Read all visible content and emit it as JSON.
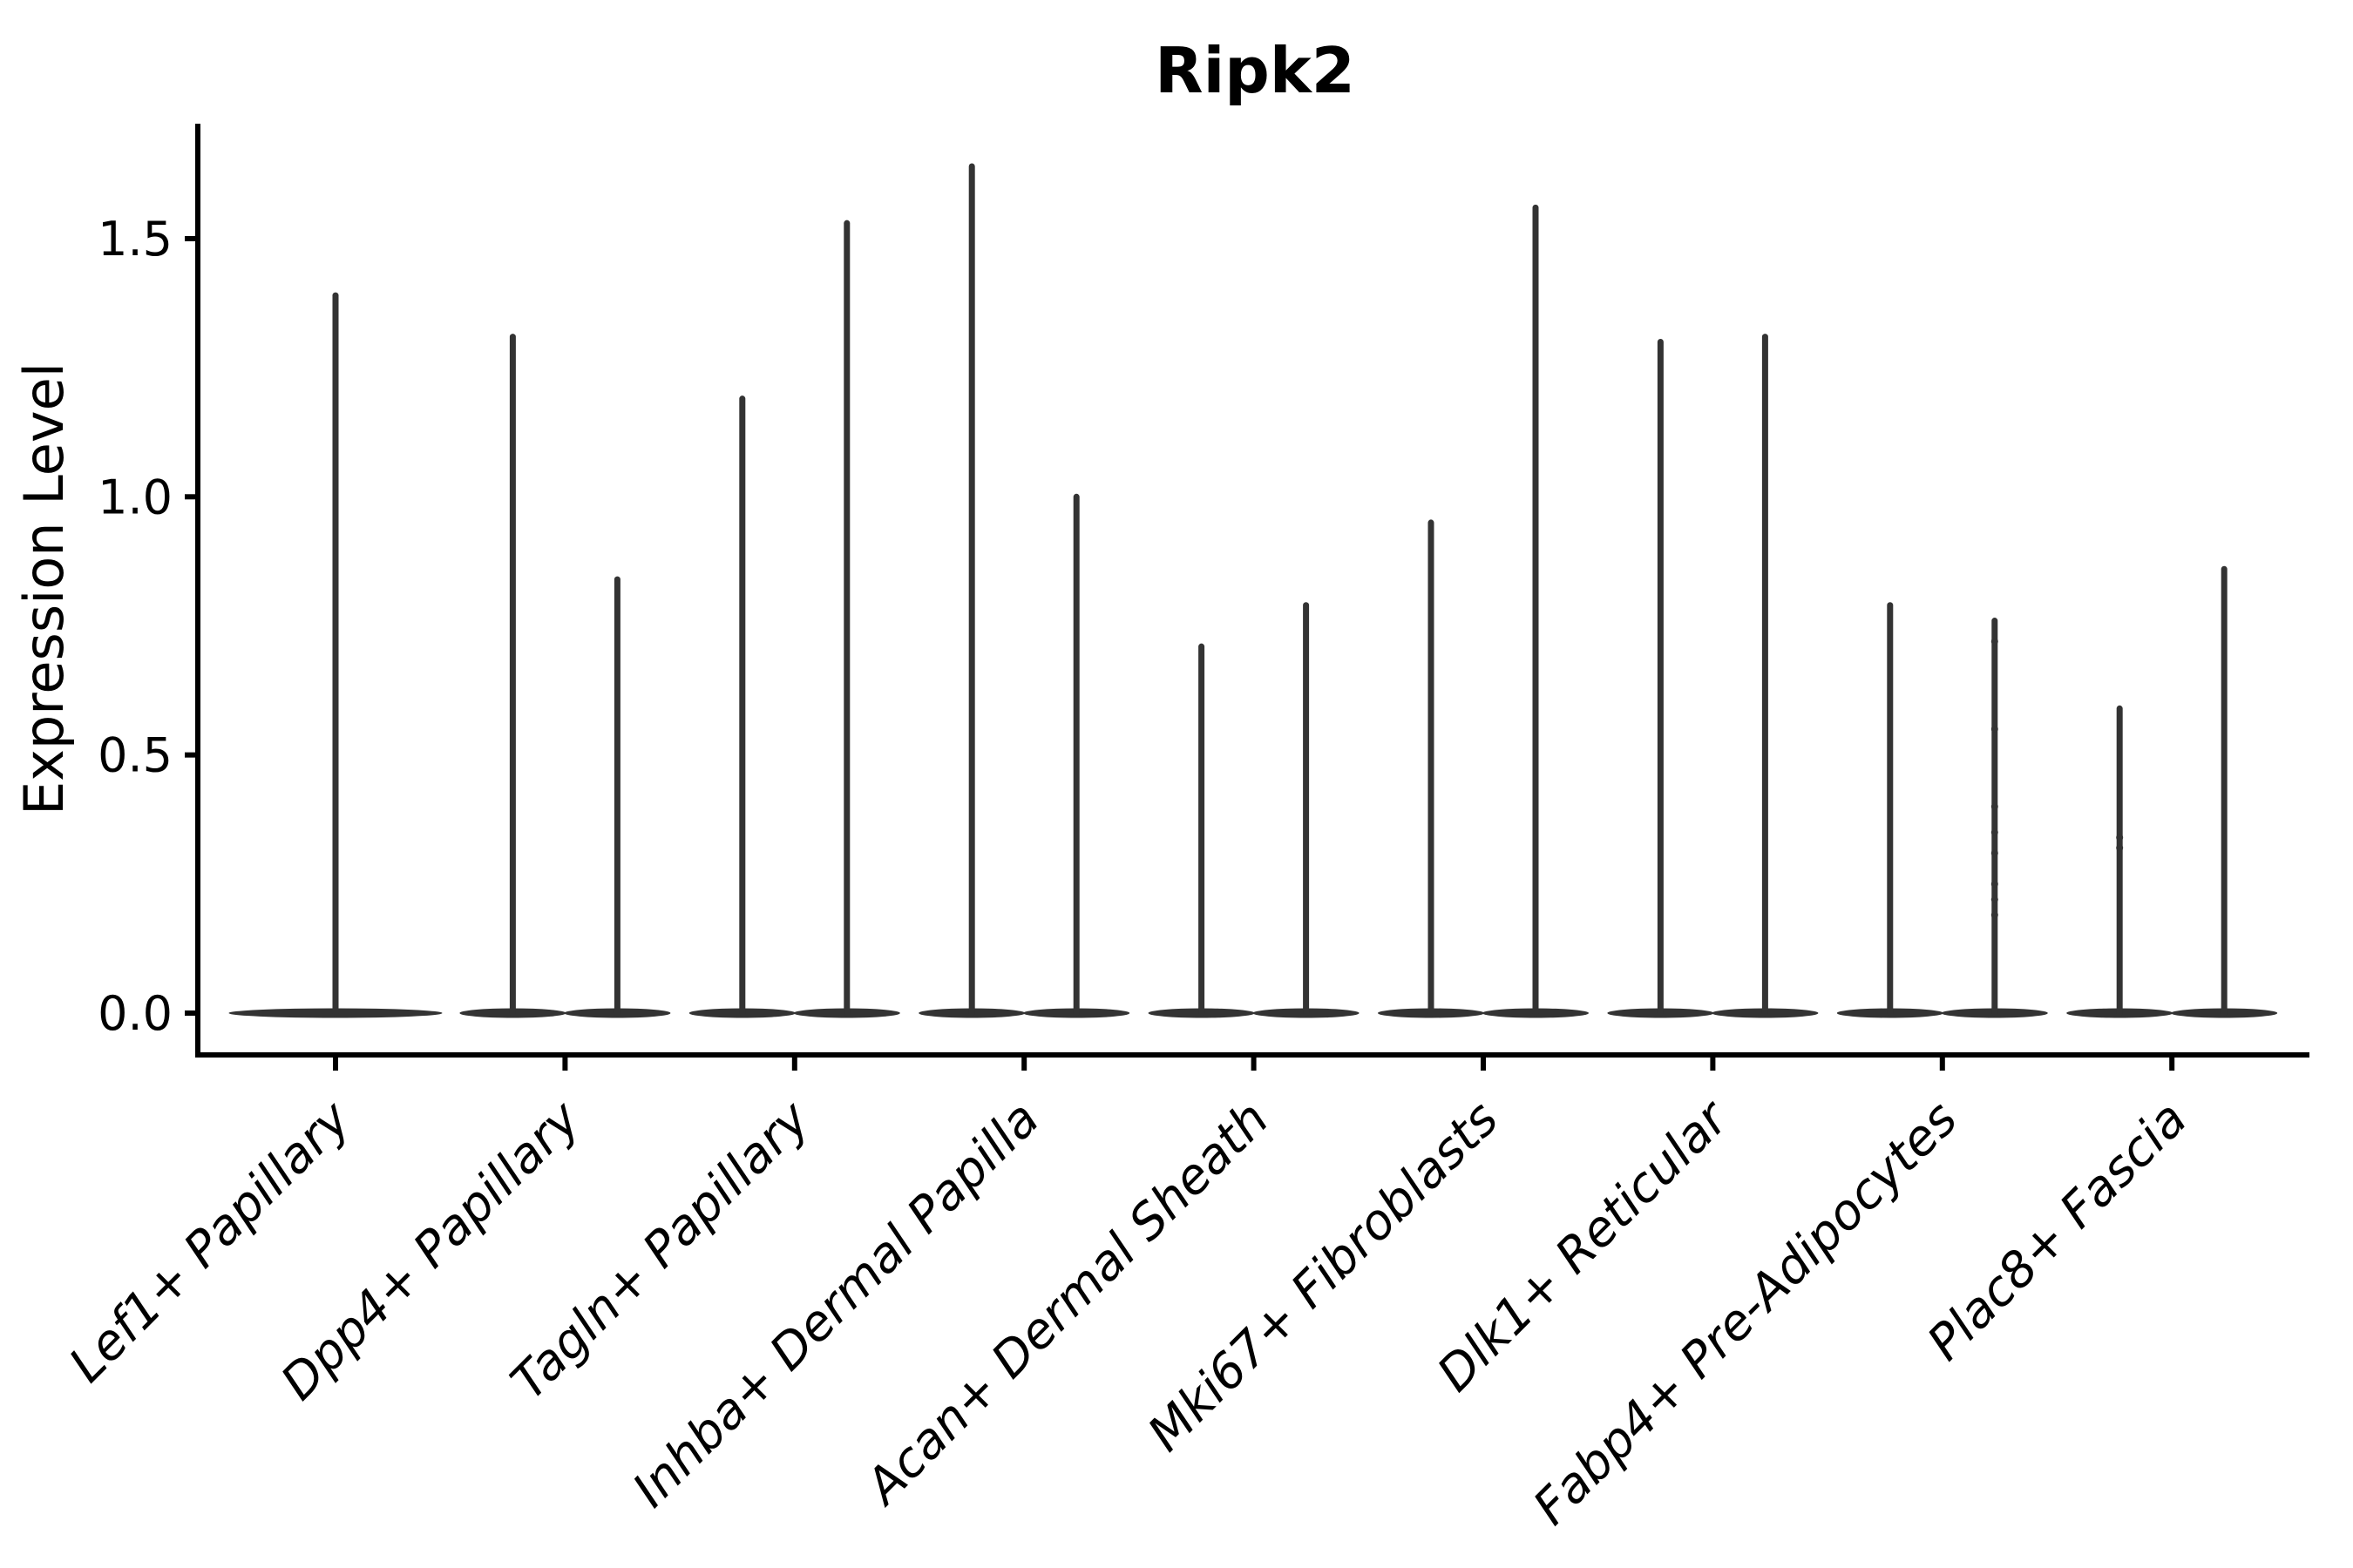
{
  "chart_data": {
    "type": "violin",
    "title": "Ripk2",
    "xlabel": "",
    "ylabel": "Expression Level",
    "ylim": [
      -0.08,
      1.72
    ],
    "grid": false,
    "legend": "none",
    "background_color": "#ffffff",
    "ink_color": "#333333",
    "axis_color": "#000000",
    "ytick_values": [
      0.0,
      0.5,
      1.0,
      1.5
    ],
    "ytick_labels": [
      "0.0",
      "0.5",
      "1.0",
      "1.5"
    ],
    "categories": [
      {
        "label": "Lef1+ Papillary",
        "violins": [
          {
            "group": "single",
            "max_expression": 1.39,
            "bulk_at_zero": true,
            "jitter_points": []
          }
        ]
      },
      {
        "label": "Dpp4+ Papillary",
        "violins": [
          {
            "group": "left",
            "max_expression": 1.31,
            "bulk_at_zero": true,
            "jitter_points": []
          },
          {
            "group": "right",
            "max_expression": 0.84,
            "bulk_at_zero": true,
            "jitter_points": []
          }
        ]
      },
      {
        "label": "Tagln+ Papillary",
        "violins": [
          {
            "group": "left",
            "max_expression": 1.19,
            "bulk_at_zero": true,
            "jitter_points": []
          },
          {
            "group": "right",
            "max_expression": 1.53,
            "bulk_at_zero": true,
            "jitter_points": []
          }
        ]
      },
      {
        "label": "Inhba+ Dermal Papilla",
        "violins": [
          {
            "group": "left",
            "max_expression": 1.64,
            "bulk_at_zero": true,
            "jitter_points": []
          },
          {
            "group": "right",
            "max_expression": 1.0,
            "bulk_at_zero": true,
            "jitter_points": []
          }
        ]
      },
      {
        "label": "Acan+ Dermal Sheath",
        "violins": [
          {
            "group": "left",
            "max_expression": 0.71,
            "bulk_at_zero": true,
            "jitter_points": []
          },
          {
            "group": "right",
            "max_expression": 0.79,
            "bulk_at_zero": true,
            "jitter_points": []
          }
        ]
      },
      {
        "label": "Mki67+ Fibroblasts",
        "violins": [
          {
            "group": "left",
            "max_expression": 0.95,
            "bulk_at_zero": true,
            "jitter_points": []
          },
          {
            "group": "right",
            "max_expression": 1.56,
            "bulk_at_zero": true,
            "jitter_points": []
          }
        ]
      },
      {
        "label": "Dlk1+ Reticular",
        "violins": [
          {
            "group": "left",
            "max_expression": 1.3,
            "bulk_at_zero": true,
            "jitter_points": []
          },
          {
            "group": "right",
            "max_expression": 1.31,
            "bulk_at_zero": true,
            "jitter_points": []
          }
        ]
      },
      {
        "label": "Fabp4+ Pre-Adipocytes",
        "violins": [
          {
            "group": "left",
            "max_expression": 0.79,
            "bulk_at_zero": true,
            "jitter_points": []
          },
          {
            "group": "right",
            "max_expression": 0.76,
            "bulk_at_zero": true,
            "jitter_points": [
              0.72,
              0.55,
              0.4,
              0.35,
              0.31,
              0.25,
              0.22,
              0.19
            ]
          }
        ]
      },
      {
        "label": "Plac8+ Fascia",
        "violins": [
          {
            "group": "left",
            "max_expression": 0.59,
            "bulk_at_zero": true,
            "jitter_points": [
              0.34,
              0.32
            ]
          },
          {
            "group": "right",
            "max_expression": 0.86,
            "bulk_at_zero": true,
            "jitter_points": []
          }
        ]
      }
    ]
  }
}
